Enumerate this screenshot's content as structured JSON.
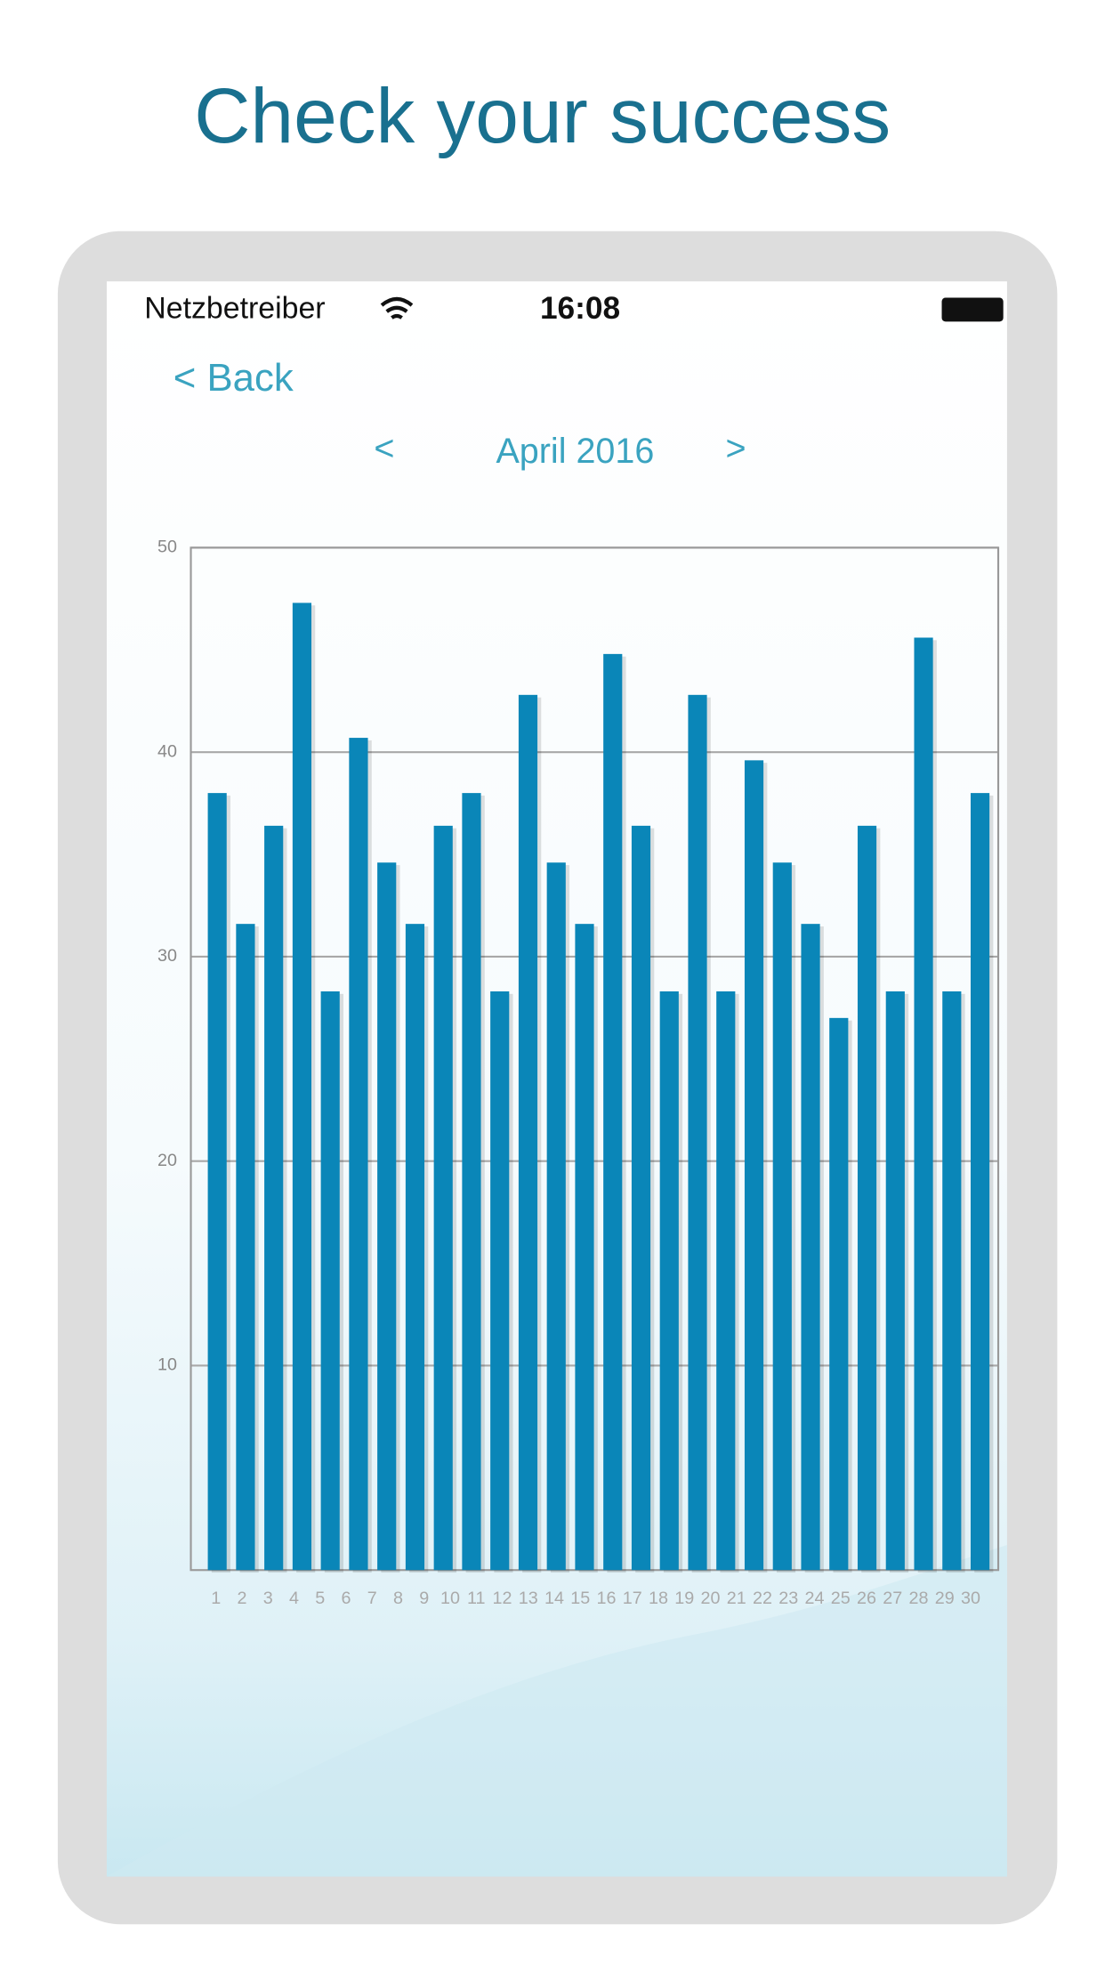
{
  "title": "Check your success",
  "status": {
    "carrier": "Netzbetreiber",
    "time": "16:08"
  },
  "back": "< Back",
  "nav": {
    "prev": "<",
    "month": "April 2016",
    "next": ">"
  },
  "chart_data": {
    "type": "bar",
    "categories": [
      "1",
      "2",
      "3",
      "4",
      "5",
      "6",
      "7",
      "8",
      "9",
      "10",
      "11",
      "12",
      "13",
      "14",
      "15",
      "16",
      "17",
      "18",
      "19",
      "20",
      "21",
      "22",
      "23",
      "24",
      "25",
      "26",
      "27",
      "28",
      "29",
      "30"
    ],
    "values": [
      38,
      31.6,
      36.4,
      47.3,
      28.3,
      40.7,
      34.6,
      31.6,
      36.4,
      38,
      28.3,
      42.8,
      34.6,
      31.6,
      44.8,
      36.4,
      28.3,
      42.8,
      28.3,
      39.6,
      34.6,
      31.6,
      27,
      36.4,
      28.3,
      45.6,
      28.3,
      38,
      null,
      null
    ],
    "color": "#0a86b8",
    "ylim": [
      0,
      50
    ],
    "yticks": [
      10,
      20,
      30,
      40,
      50
    ],
    "grid": true
  }
}
